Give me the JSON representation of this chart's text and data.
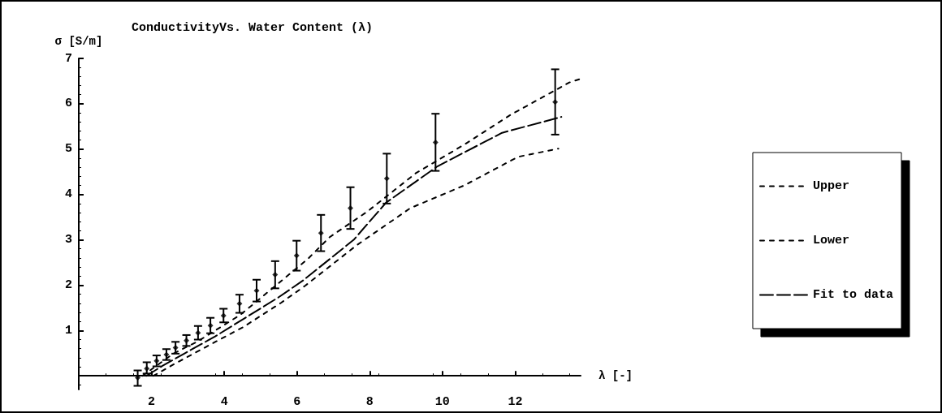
{
  "chart_data": {
    "type": "line",
    "title": "ConductivityVs. Water Content (λ)",
    "xlabel": "λ [-]",
    "ylabel": "σ [S/m]",
    "xlim": [
      0,
      13.8
    ],
    "xticks": [
      2,
      4,
      6,
      8,
      10,
      12
    ],
    "ylim": [
      -0.3,
      7
    ],
    "yticks": [
      1,
      2,
      3,
      4,
      5,
      6,
      7
    ],
    "grid": false,
    "legend": "right",
    "series": [
      {
        "name": "Upper",
        "color": "#000000",
        "line_style": "dotted",
        "x": [
          1.75,
          2.6,
          3.27,
          4.45,
          5.64,
          6.3,
          6.9,
          7.93,
          9.27,
          10.6,
          11.86,
          13.49,
          13.8
        ],
        "values": [
          0,
          0.49,
          0.76,
          1.35,
          2.14,
          2.58,
          3.06,
          3.62,
          4.47,
          5.1,
          5.75,
          6.47,
          6.55
        ]
      },
      {
        "name": "Lower",
        "color": "#000000",
        "line_style": "dotted",
        "x": [
          2.05,
          2.67,
          3.71,
          4.53,
          5.56,
          6.23,
          7.64,
          9.12,
          10.6,
          12.08,
          13.19
        ],
        "values": [
          0,
          0.28,
          0.73,
          1.08,
          1.61,
          1.99,
          2.88,
          3.7,
          4.2,
          4.83,
          5.01
        ]
      },
      {
        "name": "Fit to data",
        "color": "#000000",
        "line_style": "dashed",
        "x": [
          1.86,
          2.3,
          2.9,
          3.75,
          4.6,
          5.49,
          6.16,
          7.56,
          8.45,
          9.86,
          11.64,
          13.27
        ],
        "values": [
          0,
          0.22,
          0.49,
          0.87,
          1.29,
          1.73,
          2.1,
          3.0,
          3.82,
          4.62,
          5.36,
          5.71
        ]
      },
      {
        "type": "scatter",
        "color": "#000000",
        "marker": "diamond",
        "x": [
          1.62,
          1.87,
          2.14,
          2.41,
          2.66,
          2.96,
          3.28,
          3.62,
          3.98,
          4.42,
          4.89,
          5.4,
          5.99,
          6.66,
          7.47,
          8.47,
          9.81,
          13.1
        ],
        "values": [
          -0.04,
          0.16,
          0.33,
          0.47,
          0.62,
          0.78,
          0.95,
          1.11,
          1.33,
          1.59,
          1.88,
          2.23,
          2.65,
          3.15,
          3.7,
          4.35,
          5.15,
          6.04
        ],
        "errors": [
          [
            -0.22,
            0.12
          ],
          [
            0.05,
            0.3
          ],
          0.12,
          0.12,
          0.13,
          0.12,
          0.15,
          0.17,
          0.15,
          0.2,
          0.24,
          0.3,
          0.33,
          0.4,
          0.46,
          0.55,
          0.63,
          0.72
        ]
      }
    ]
  }
}
